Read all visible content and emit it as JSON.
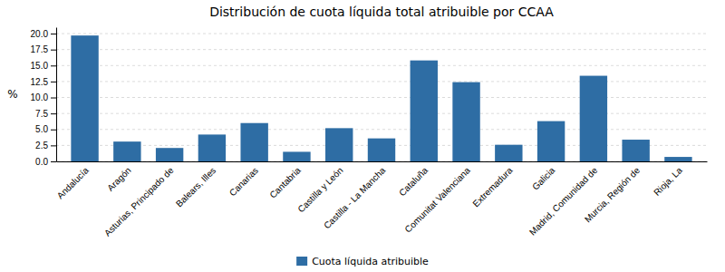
{
  "chart_data": {
    "type": "bar",
    "title": "Distribución de cuota líquida total atribuible por CCAA",
    "ylabel": "%",
    "categories": [
      "Andalucía",
      "Aragón",
      "Asturias, Principado de",
      "Balears, Illes",
      "Canarias",
      "Cantabria",
      "Castilla y León",
      "Castilla - La Mancha",
      "Cataluña",
      "Comunitat Valenciana",
      "Extremadura",
      "Galicia",
      "Madrid, Comunidad de",
      "Murcia, Región de",
      "Rioja, La"
    ],
    "series": [
      {
        "name": "Cuota líquida atribuible",
        "color": "#2E6DA4",
        "values": [
          19.7,
          3.1,
          2.1,
          4.2,
          6.0,
          1.5,
          5.2,
          3.6,
          15.8,
          12.4,
          2.6,
          6.3,
          13.4,
          3.4,
          0.7
        ]
      }
    ],
    "ylim": [
      0,
      21
    ],
    "yticks": [
      {
        "value": 0.0,
        "label": "0.0"
      },
      2.5,
      {
        "value": 5.0,
        "label": "5.0"
      },
      7.5,
      {
        "value": 10.0,
        "label": "10.0"
      },
      12.5,
      {
        "value": 15.0,
        "label": "15.0"
      },
      17.5,
      {
        "value": 20.0,
        "label": "20.0"
      }
    ],
    "grid": true,
    "legend": "bottom"
  }
}
